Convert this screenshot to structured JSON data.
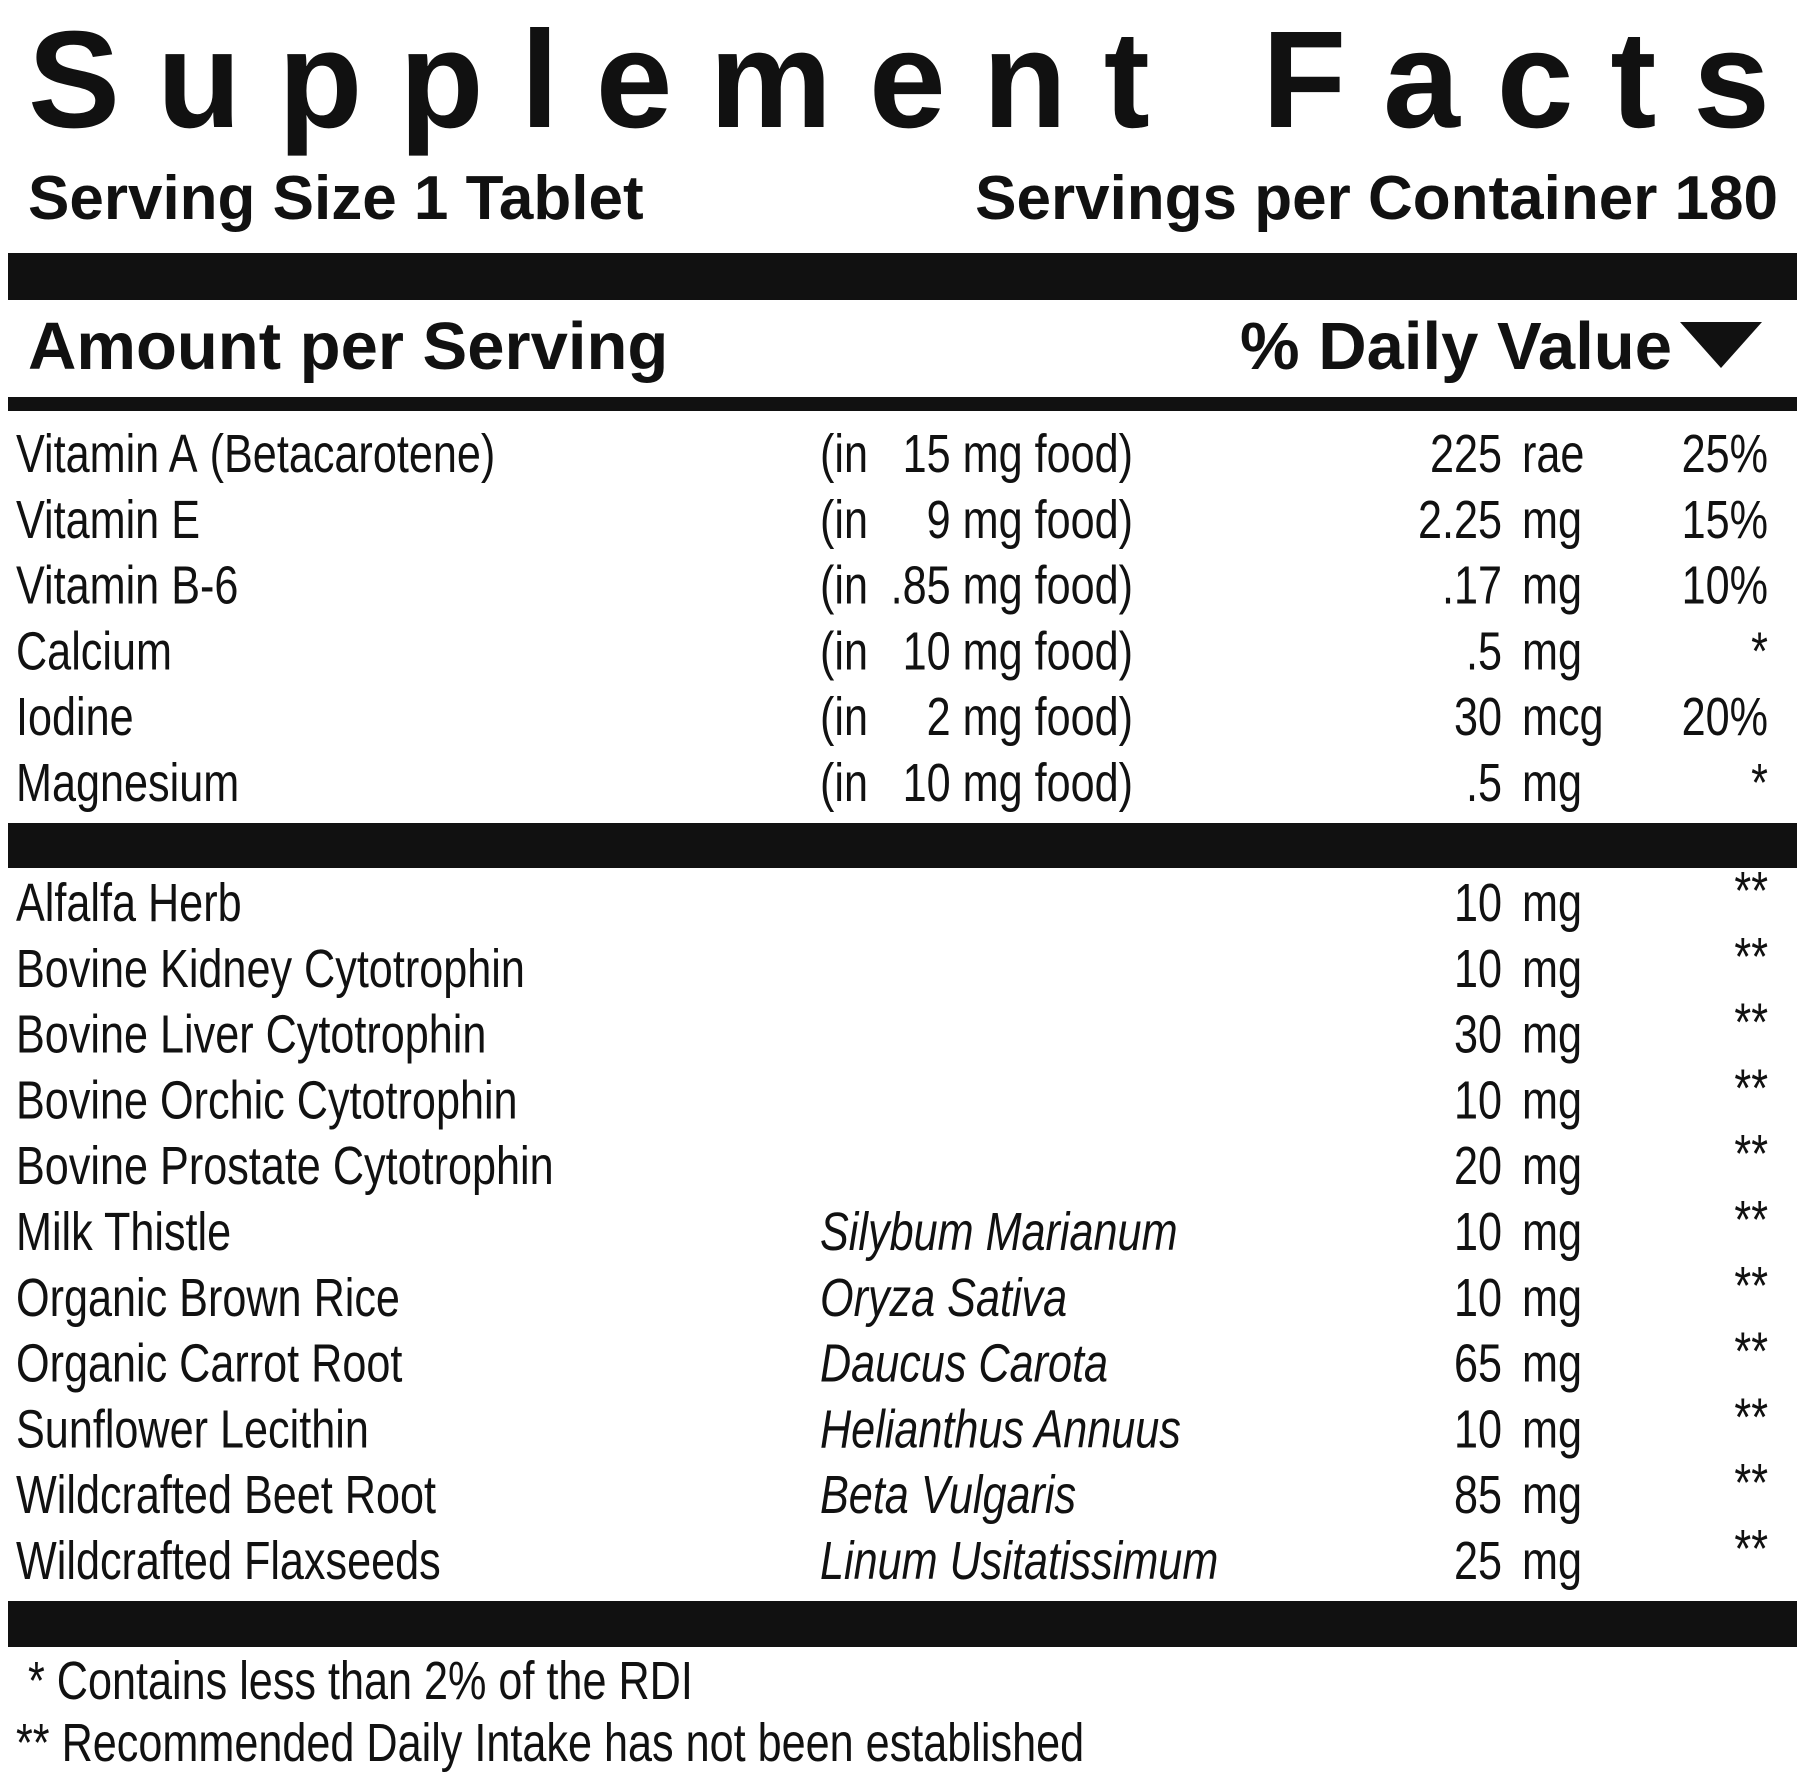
{
  "title": "Supplement Facts",
  "serving_size": "Serving Size 1 Tablet",
  "servings_per_container": "Servings per Container 180",
  "amount_header": "Amount per Serving",
  "dv_header": "% Daily Value",
  "vitamins": [
    {
      "name": "Vitamin A",
      "note": "(Betacarotene)",
      "source": "(in",
      "source_amount": "15 mg food)",
      "amount": "225",
      "unit": "rae",
      "dv": "25%"
    },
    {
      "name": "Vitamin E",
      "source": "(in",
      "source_amount": "9 mg food)",
      "amount": "2.25",
      "unit": "mg",
      "dv": "15%"
    },
    {
      "name": "Vitamin B-6",
      "source": "(in",
      "source_amount": ".85 mg food)",
      "amount": ".17",
      "unit": "mg",
      "dv": "10%"
    },
    {
      "name": "Calcium",
      "source": "(in",
      "source_amount": "10 mg food)",
      "amount": ".5",
      "unit": "mg",
      "dv": "*"
    },
    {
      "name": "Iodine",
      "source": "(in",
      "source_amount": "2 mg food)",
      "amount": "30",
      "unit": "mcg",
      "dv": "20%"
    },
    {
      "name": "Magnesium",
      "source": "(in",
      "source_amount": "10 mg food)",
      "amount": ".5",
      "unit": "mg",
      "dv": "*"
    }
  ],
  "herbs": [
    {
      "name": "Alfalfa Herb",
      "amount": "10",
      "unit": "mg",
      "dv": "**"
    },
    {
      "name": "Bovine Kidney Cytotrophin",
      "amount": "10",
      "unit": "mg",
      "dv": "**"
    },
    {
      "name": "Bovine Liver Cytotrophin",
      "amount": "30",
      "unit": "mg",
      "dv": "**"
    },
    {
      "name": "Bovine Orchic Cytotrophin",
      "amount": "10",
      "unit": "mg",
      "dv": "**"
    },
    {
      "name": "Bovine Prostate Cytotrophin",
      "amount": "20",
      "unit": "mg",
      "dv": "**"
    },
    {
      "name": "Milk Thistle",
      "latin": "Silybum Marianum",
      "amount": "10",
      "unit": "mg",
      "dv": "**"
    },
    {
      "name": "Organic Brown Rice",
      "latin": "Oryza Sativa",
      "amount": "10",
      "unit": "mg",
      "dv": "**"
    },
    {
      "name": "Organic Carrot Root",
      "latin": "Daucus Carota",
      "amount": "65",
      "unit": "mg",
      "dv": "**"
    },
    {
      "name": "Sunflower Lecithin",
      "latin": "Helianthus Annuus",
      "amount": "10",
      "unit": "mg",
      "dv": "**"
    },
    {
      "name": "Wildcrafted Beet Root",
      "latin": "Beta Vulgaris",
      "amount": "85",
      "unit": "mg",
      "dv": "**"
    },
    {
      "name": "Wildcrafted Flaxseeds",
      "latin": "Linum Usitatissimum",
      "amount": "25",
      "unit": "mg",
      "dv": "**"
    }
  ],
  "footnotes": [
    "* Contains less than 2% of the RDI",
    "** Recommended Daily Intake has not been established"
  ]
}
